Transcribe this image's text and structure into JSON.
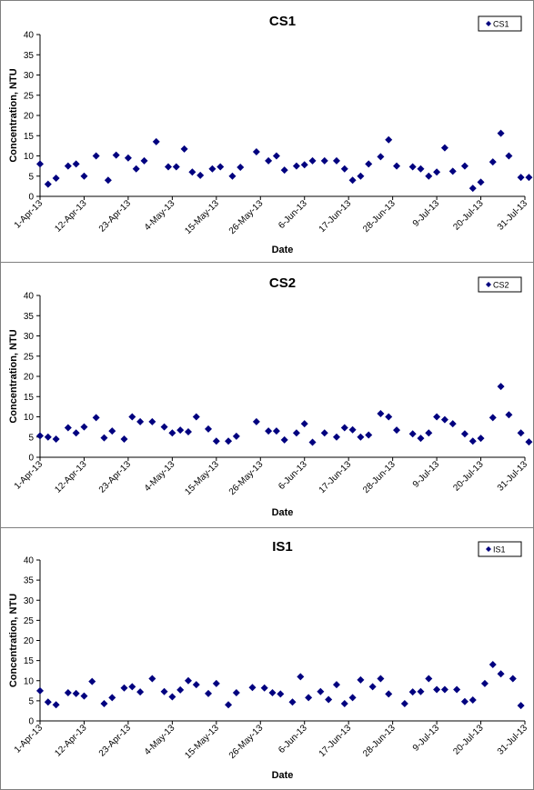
{
  "chart_data": [
    {
      "type": "scatter",
      "title": "CS1",
      "xlabel": "Date",
      "ylabel": "Concentration, NTU",
      "xlim": [
        "1-Apr-13",
        "31-Jul-13"
      ],
      "ylim": [
        0,
        40
      ],
      "yticks": [
        0,
        5,
        10,
        15,
        20,
        25,
        30,
        35,
        40
      ],
      "xticks": [
        "1-Apr-13",
        "12-Apr-13",
        "23-Apr-13",
        "4-May-13",
        "15-May-13",
        "26-May-13",
        "6-Jun-13",
        "17-Jun-13",
        "28-Jun-13",
        "9-Jul-13",
        "20-Jul-13",
        "31-Jul-13"
      ],
      "grid": false,
      "legend_position": "top-right",
      "series": [
        {
          "name": "CS1",
          "color": "#00007f",
          "marker": "diamond",
          "points": [
            [
              "1-Apr-13",
              8.0
            ],
            [
              "3-Apr-13",
              3.0
            ],
            [
              "5-Apr-13",
              4.5
            ],
            [
              "8-Apr-13",
              7.5
            ],
            [
              "10-Apr-13",
              8.0
            ],
            [
              "12-Apr-13",
              5.0
            ],
            [
              "15-Apr-13",
              10.0
            ],
            [
              "18-Apr-13",
              4.0
            ],
            [
              "20-Apr-13",
              10.2
            ],
            [
              "23-Apr-13",
              9.5
            ],
            [
              "25-Apr-13",
              6.8
            ],
            [
              "27-Apr-13",
              8.8
            ],
            [
              "30-Apr-13",
              13.5
            ],
            [
              "3-May-13",
              7.3
            ],
            [
              "5-May-13",
              7.3
            ],
            [
              "7-May-13",
              11.7
            ],
            [
              "9-May-13",
              6.0
            ],
            [
              "11-May-13",
              5.2
            ],
            [
              "14-May-13",
              6.8
            ],
            [
              "16-May-13",
              7.3
            ],
            [
              "19-May-13",
              5.0
            ],
            [
              "21-May-13",
              7.2
            ],
            [
              "25-May-13",
              11.0
            ],
            [
              "28-May-13",
              8.8
            ],
            [
              "30-May-13",
              10.0
            ],
            [
              "1-Jun-13",
              6.5
            ],
            [
              "4-Jun-13",
              7.5
            ],
            [
              "6-Jun-13",
              7.8
            ],
            [
              "8-Jun-13",
              8.8
            ],
            [
              "11-Jun-13",
              8.8
            ],
            [
              "14-Jun-13",
              8.8
            ],
            [
              "16-Jun-13",
              6.8
            ],
            [
              "18-Jun-13",
              4.0
            ],
            [
              "20-Jun-13",
              5.0
            ],
            [
              "22-Jun-13",
              8.0
            ],
            [
              "25-Jun-13",
              9.8
            ],
            [
              "27-Jun-13",
              14.0
            ],
            [
              "29-Jun-13",
              7.5
            ],
            [
              "3-Jul-13",
              7.3
            ],
            [
              "5-Jul-13",
              6.8
            ],
            [
              "7-Jul-13",
              5.0
            ],
            [
              "9-Jul-13",
              6.0
            ],
            [
              "11-Jul-13",
              12.0
            ],
            [
              "13-Jul-13",
              6.2
            ],
            [
              "16-Jul-13",
              7.5
            ],
            [
              "18-Jul-13",
              2.0
            ],
            [
              "20-Jul-13",
              3.5
            ],
            [
              "23-Jul-13",
              8.5
            ],
            [
              "25-Jul-13",
              15.6
            ],
            [
              "27-Jul-13",
              10.0
            ],
            [
              "30-Jul-13",
              4.7
            ],
            [
              "1-Aug-13",
              4.7
            ]
          ]
        }
      ]
    },
    {
      "type": "scatter",
      "title": "CS2",
      "xlabel": "Date",
      "ylabel": "Concentration, NTU",
      "xlim": [
        "1-Apr-13",
        "31-Jul-13"
      ],
      "ylim": [
        0,
        40
      ],
      "yticks": [
        0,
        5,
        10,
        15,
        20,
        25,
        30,
        35,
        40
      ],
      "xticks": [
        "1-Apr-13",
        "12-Apr-13",
        "23-Apr-13",
        "4-May-13",
        "15-May-13",
        "26-May-13",
        "6-Jun-13",
        "17-Jun-13",
        "28-Jun-13",
        "9-Jul-13",
        "20-Jul-13",
        "31-Jul-13"
      ],
      "grid": false,
      "legend_position": "top-right",
      "series": [
        {
          "name": "CS2",
          "color": "#00007f",
          "marker": "diamond",
          "points": [
            [
              "1-Apr-13",
              5.3
            ],
            [
              "3-Apr-13",
              5.0
            ],
            [
              "5-Apr-13",
              4.5
            ],
            [
              "8-Apr-13",
              7.3
            ],
            [
              "10-Apr-13",
              6.0
            ],
            [
              "12-Apr-13",
              7.5
            ],
            [
              "15-Apr-13",
              9.8
            ],
            [
              "17-Apr-13",
              4.8
            ],
            [
              "19-Apr-13",
              6.5
            ],
            [
              "22-Apr-13",
              4.5
            ],
            [
              "24-Apr-13",
              10.0
            ],
            [
              "26-Apr-13",
              8.8
            ],
            [
              "29-Apr-13",
              8.8
            ],
            [
              "2-May-13",
              7.5
            ],
            [
              "4-May-13",
              6.0
            ],
            [
              "6-May-13",
              6.7
            ],
            [
              "8-May-13",
              6.3
            ],
            [
              "10-May-13",
              10.0
            ],
            [
              "13-May-13",
              7.0
            ],
            [
              "15-May-13",
              4.0
            ],
            [
              "18-May-13",
              4.0
            ],
            [
              "20-May-13",
              5.2
            ],
            [
              "25-May-13",
              8.8
            ],
            [
              "28-May-13",
              6.5
            ],
            [
              "30-May-13",
              6.5
            ],
            [
              "1-Jun-13",
              4.3
            ],
            [
              "4-Jun-13",
              6.0
            ],
            [
              "6-Jun-13",
              8.3
            ],
            [
              "8-Jun-13",
              3.7
            ],
            [
              "11-Jun-13",
              6.0
            ],
            [
              "14-Jun-13",
              5.0
            ],
            [
              "16-Jun-13",
              7.3
            ],
            [
              "18-Jun-13",
              6.8
            ],
            [
              "20-Jun-13",
              5.0
            ],
            [
              "22-Jun-13",
              5.5
            ],
            [
              "25-Jun-13",
              10.8
            ],
            [
              "27-Jun-13",
              10.0
            ],
            [
              "29-Jun-13",
              6.7
            ],
            [
              "3-Jul-13",
              5.8
            ],
            [
              "5-Jul-13",
              4.7
            ],
            [
              "7-Jul-13",
              6.0
            ],
            [
              "9-Jul-13",
              10.0
            ],
            [
              "11-Jul-13",
              9.3
            ],
            [
              "13-Jul-13",
              8.3
            ],
            [
              "16-Jul-13",
              5.8
            ],
            [
              "18-Jul-13",
              4.0
            ],
            [
              "20-Jul-13",
              4.7
            ],
            [
              "23-Jul-13",
              9.8
            ],
            [
              "25-Jul-13",
              17.5
            ],
            [
              "27-Jul-13",
              10.5
            ],
            [
              "30-Jul-13",
              6.0
            ],
            [
              "1-Aug-13",
              3.8
            ]
          ]
        }
      ]
    },
    {
      "type": "scatter",
      "title": "IS1",
      "xlabel": "Date",
      "ylabel": "Concentration, NTU",
      "xlim": [
        "1-Apr-13",
        "31-Jul-13"
      ],
      "ylim": [
        0,
        40
      ],
      "yticks": [
        0,
        5,
        10,
        15,
        20,
        25,
        30,
        35,
        40
      ],
      "xticks": [
        "1-Apr-13",
        "12-Apr-13",
        "23-Apr-13",
        "4-May-13",
        "15-May-13",
        "26-May-13",
        "6-Jun-13",
        "17-Jun-13",
        "28-Jun-13",
        "9-Jul-13",
        "20-Jul-13",
        "31-Jul-13"
      ],
      "grid": false,
      "legend_position": "top-right",
      "series": [
        {
          "name": "IS1",
          "color": "#00007f",
          "marker": "diamond",
          "points": [
            [
              "1-Apr-13",
              7.5
            ],
            [
              "3-Apr-13",
              4.7
            ],
            [
              "5-Apr-13",
              4.0
            ],
            [
              "8-Apr-13",
              7.0
            ],
            [
              "10-Apr-13",
              6.8
            ],
            [
              "12-Apr-13",
              6.2
            ],
            [
              "14-Apr-13",
              9.8
            ],
            [
              "17-Apr-13",
              4.3
            ],
            [
              "19-Apr-13",
              5.8
            ],
            [
              "22-Apr-13",
              8.2
            ],
            [
              "24-Apr-13",
              8.5
            ],
            [
              "26-Apr-13",
              7.2
            ],
            [
              "29-Apr-13",
              10.5
            ],
            [
              "2-May-13",
              7.3
            ],
            [
              "4-May-13",
              6.0
            ],
            [
              "6-May-13",
              7.7
            ],
            [
              "8-May-13",
              10.0
            ],
            [
              "10-May-13",
              9.0
            ],
            [
              "13-May-13",
              6.8
            ],
            [
              "15-May-13",
              9.3
            ],
            [
              "18-May-13",
              4.0
            ],
            [
              "20-May-13",
              7.0
            ],
            [
              "24-May-13",
              8.3
            ],
            [
              "27-May-13",
              8.2
            ],
            [
              "29-May-13",
              7.0
            ],
            [
              "31-May-13",
              6.7
            ],
            [
              "3-Jun-13",
              4.7
            ],
            [
              "5-Jun-13",
              11.0
            ],
            [
              "7-Jun-13",
              5.8
            ],
            [
              "10-Jun-13",
              7.3
            ],
            [
              "12-Jun-13",
              5.3
            ],
            [
              "14-Jun-13",
              9.0
            ],
            [
              "16-Jun-13",
              4.3
            ],
            [
              "18-Jun-13",
              5.8
            ],
            [
              "20-Jun-13",
              10.2
            ],
            [
              "23-Jun-13",
              8.5
            ],
            [
              "25-Jun-13",
              10.5
            ],
            [
              "27-Jun-13",
              6.7
            ],
            [
              "1-Jul-13",
              4.3
            ],
            [
              "3-Jul-13",
              7.2
            ],
            [
              "5-Jul-13",
              7.3
            ],
            [
              "7-Jul-13",
              10.5
            ],
            [
              "9-Jul-13",
              7.8
            ],
            [
              "11-Jul-13",
              7.8
            ],
            [
              "14-Jul-13",
              7.8
            ],
            [
              "16-Jul-13",
              4.8
            ],
            [
              "18-Jul-13",
              5.2
            ],
            [
              "21-Jul-13",
              9.3
            ],
            [
              "23-Jul-13",
              14.0
            ],
            [
              "25-Jul-13",
              11.7
            ],
            [
              "28-Jul-13",
              10.5
            ],
            [
              "30-Jul-13",
              3.8
            ]
          ]
        }
      ]
    }
  ]
}
